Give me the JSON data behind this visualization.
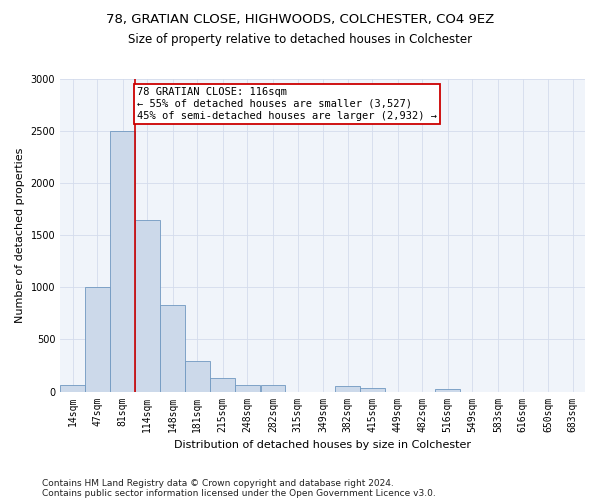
{
  "title1": "78, GRATIAN CLOSE, HIGHWOODS, COLCHESTER, CO4 9EZ",
  "title2": "Size of property relative to detached houses in Colchester",
  "xlabel": "Distribution of detached houses by size in Colchester",
  "ylabel": "Number of detached properties",
  "bin_starts": [
    14,
    47,
    81,
    114,
    148,
    181,
    215,
    248,
    282,
    315,
    349,
    382,
    415,
    449,
    482,
    516,
    549,
    583,
    616,
    650,
    683
  ],
  "bin_width": 33,
  "counts": [
    60,
    1000,
    2500,
    1650,
    830,
    290,
    130,
    60,
    60,
    0,
    0,
    50,
    30,
    0,
    0,
    25,
    0,
    0,
    0,
    0
  ],
  "bar_color": "#ccd9ea",
  "bar_edge_color": "#7098c0",
  "vline_x": 114,
  "vline_color": "#cc0000",
  "annotation_text": "78 GRATIAN CLOSE: 116sqm\n← 55% of detached houses are smaller (3,527)\n45% of semi-detached houses are larger (2,932) →",
  "annotation_box_facecolor": "#ffffff",
  "annotation_box_edgecolor": "#cc0000",
  "ylim_max": 3000,
  "yticks": [
    0,
    500,
    1000,
    1500,
    2000,
    2500,
    3000
  ],
  "tick_labels": [
    "14sqm",
    "47sqm",
    "81sqm",
    "114sqm",
    "148sqm",
    "181sqm",
    "215sqm",
    "248sqm",
    "282sqm",
    "315sqm",
    "349sqm",
    "382sqm",
    "415sqm",
    "449sqm",
    "482sqm",
    "516sqm",
    "549sqm",
    "583sqm",
    "616sqm",
    "650sqm",
    "683sqm"
  ],
  "title1_fontsize": 9.5,
  "title2_fontsize": 8.5,
  "axis_label_fontsize": 8,
  "tick_fontsize": 7,
  "annotation_fontsize": 7.5,
  "footnote_fontsize": 6.5,
  "footnote1": "Contains HM Land Registry data © Crown copyright and database right 2024.",
  "footnote2": "Contains public sector information licensed under the Open Government Licence v3.0.",
  "grid_color": "#d4dcec",
  "bg_color": "#f0f4fa"
}
